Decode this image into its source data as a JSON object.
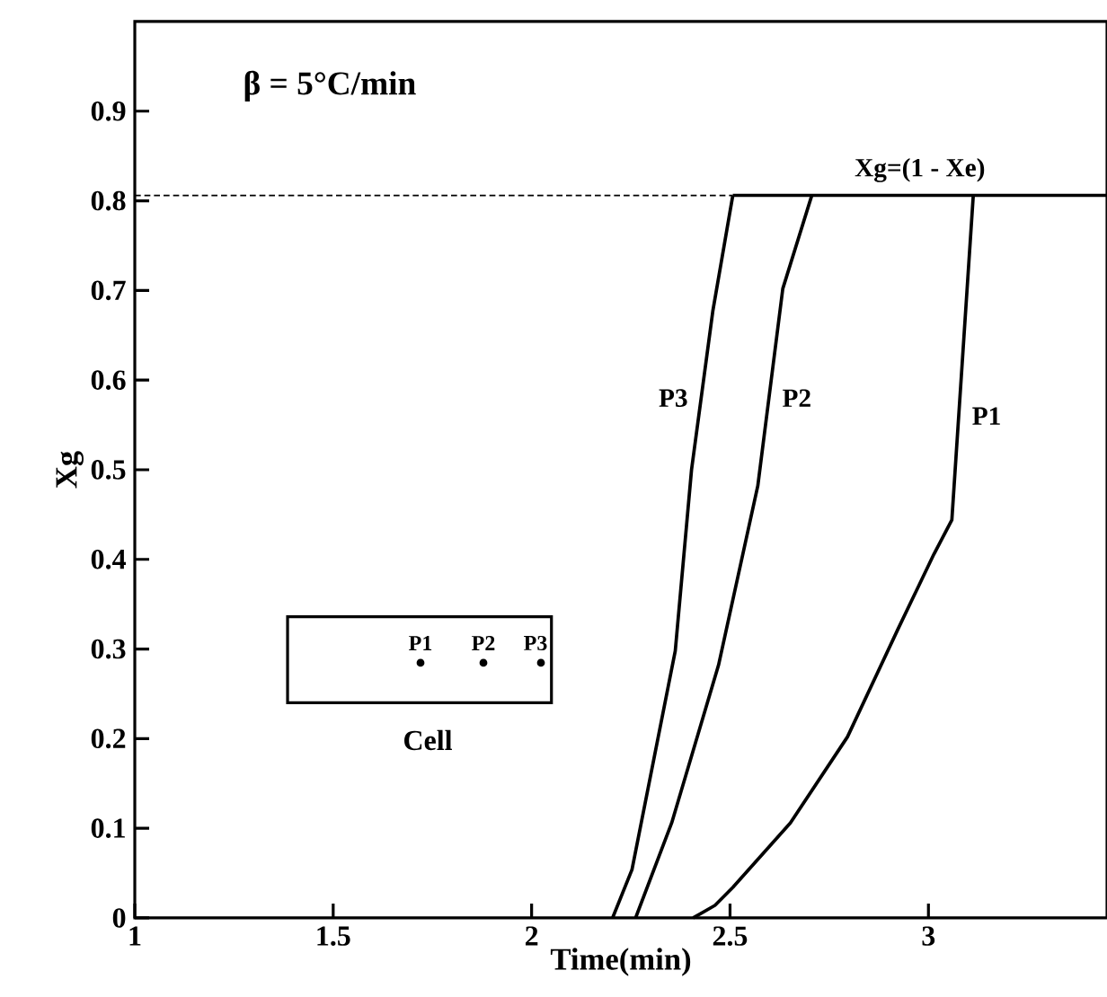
{
  "chart_data": {
    "type": "line",
    "xlabel": "Time(min)",
    "ylabel": "Xg",
    "xlim": [
      1,
      3.45
    ],
    "ylim": [
      0,
      1
    ],
    "xticks": [
      1,
      1.5,
      2,
      2.5,
      3
    ],
    "yticks": [
      0,
      0.1,
      0.2,
      0.3,
      0.4,
      0.5,
      0.6,
      0.7,
      0.8,
      0.9
    ],
    "marker": "none",
    "annotations": [
      "β = 5°C/min",
      "Cell",
      "P1",
      "P2",
      "P3"
    ],
    "series": [
      {
        "name": "P1",
        "color": "#000000",
        "line_style": "solid",
        "x": [
          2.407,
          2.462,
          2.507,
          2.652,
          2.796,
          2.923,
          3.014,
          3.059,
          3.113
        ],
        "values": [
          0,
          0.014,
          0.034,
          0.106,
          0.202,
          0.322,
          0.406,
          0.444,
          0.806
        ]
      },
      {
        "name": "P2",
        "color": "#000000",
        "line_style": "solid",
        "x": [
          2.262,
          2.353,
          2.471,
          2.57,
          2.633,
          2.706
        ],
        "values": [
          0,
          0.106,
          0.282,
          0.482,
          0.702,
          0.806
        ]
      },
      {
        "name": "P3",
        "color": "#000000",
        "line_style": "solid",
        "x": [
          2.204,
          2.253,
          2.362,
          2.403,
          2.457,
          2.507
        ],
        "values": [
          0,
          0.054,
          0.298,
          0.5,
          0.678,
          0.806
        ]
      },
      {
        "color": "#000000",
        "line_style": "dashed",
        "x": [
          1,
          2.507
        ],
        "values": [
          0.806,
          0.806
        ]
      },
      {
        "name": "Xg=(1 - Xe)",
        "color": "#000000",
        "line_style": "solid",
        "x": [
          2.507,
          3.45
        ],
        "values": [
          0.806,
          0.806
        ]
      }
    ]
  }
}
